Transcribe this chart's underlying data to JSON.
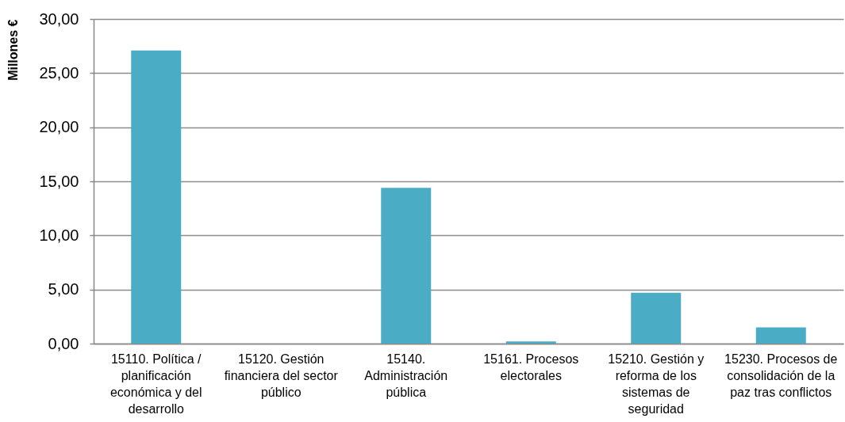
{
  "chart_data": {
    "type": "bar",
    "ylabel": "Millones €",
    "categories": [
      "15110. Política / planificación económica y del desarrollo",
      "15120. Gestión financiera del sector público",
      "15140. Administración pública",
      "15161. Procesos electorales",
      "15210. Gestión y reforma de los sistemas de seguridad",
      "15230. Procesos de consolidación de la paz tras conflictos"
    ],
    "values": [
      27.1,
      null,
      14.4,
      0.2,
      4.7,
      1.5
    ],
    "color": "#4bacc6",
    "ylim": [
      0,
      30
    ],
    "yticks": [
      {
        "value": 0,
        "label": "0,00"
      },
      {
        "value": 5,
        "label": "5,00"
      },
      {
        "value": 10,
        "label": "10,00"
      },
      {
        "value": 15,
        "label": "15,00"
      },
      {
        "value": 20,
        "label": "20,00"
      },
      {
        "value": 25,
        "label": "25,00"
      },
      {
        "value": 30,
        "label": "30,00"
      }
    ],
    "grid": "y"
  }
}
